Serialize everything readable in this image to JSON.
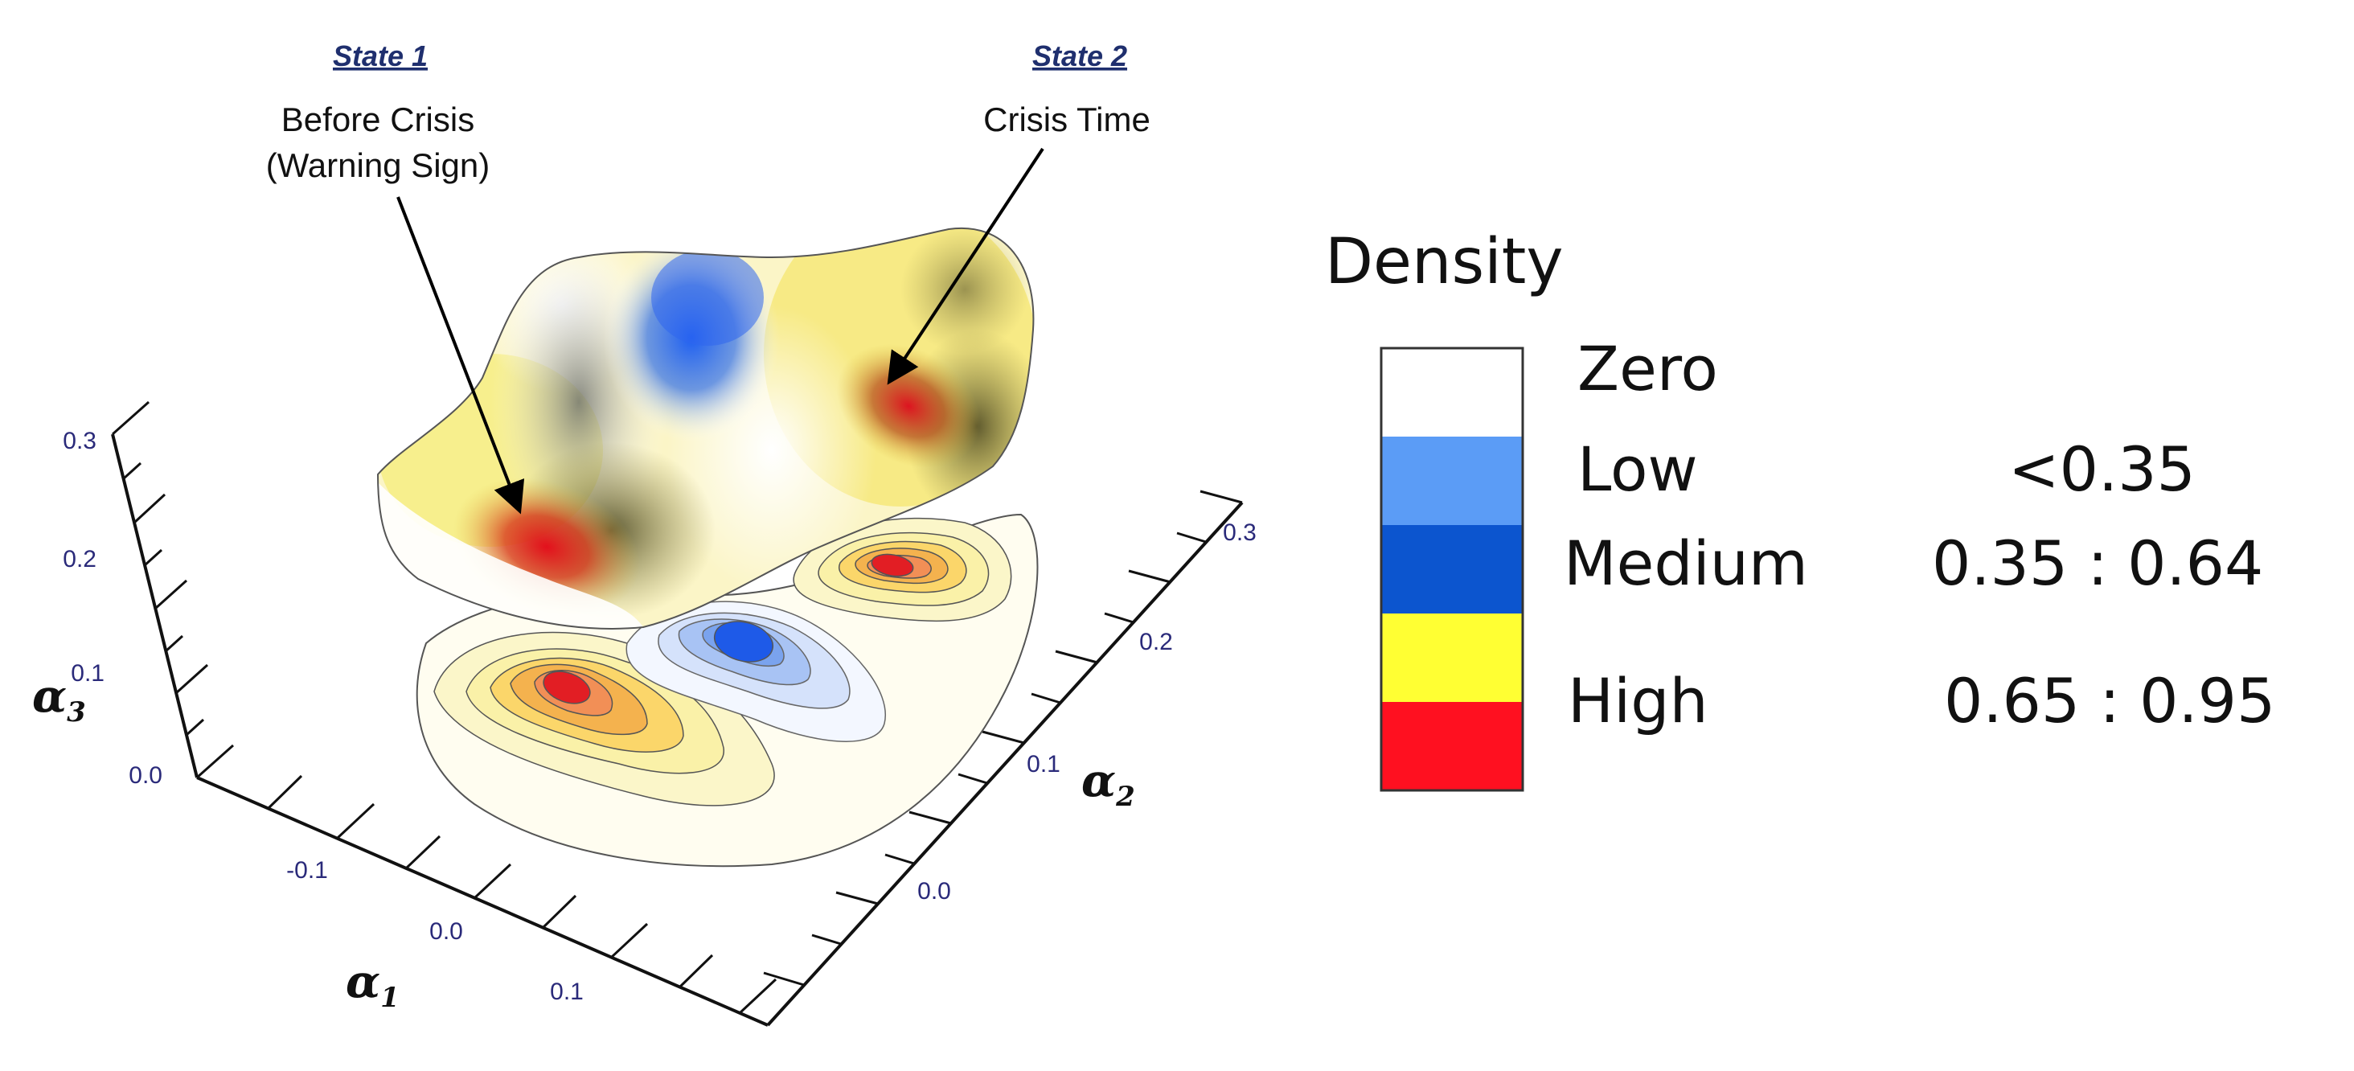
{
  "chart_data": {
    "type": "surface3d-density",
    "title": "",
    "states": [
      {
        "title": "State 1",
        "label_lines": [
          "Before Crisis",
          "(Warning Sign)"
        ]
      },
      {
        "title": "State 2",
        "label_lines": [
          "Crisis Time"
        ]
      }
    ],
    "axes": {
      "x": {
        "label": "α",
        "subscript": "1",
        "ticks": [
          "-0.1",
          "0.0",
          "0.1"
        ]
      },
      "y": {
        "label": "α",
        "subscript": "2",
        "ticks": [
          "0.0",
          "0.1",
          "0.2",
          "0.3"
        ]
      },
      "z": {
        "label": "α",
        "subscript": "3",
        "ticks": [
          "0.0",
          "0.1",
          "0.2",
          "0.3"
        ]
      }
    },
    "legend": {
      "title": "Density",
      "entries": [
        {
          "label": "Zero",
          "range": "",
          "color": "#ffffff"
        },
        {
          "label": "Low",
          "range": "<0.35",
          "color": "#5b9cf6"
        },
        {
          "label": "Medium",
          "range": "0.35 : 0.64",
          "color": "#0c55cf"
        },
        {
          "label": "High",
          "range": "0.65 : 0.95",
          "color": "#ffff33"
        },
        {
          "label": "",
          "range": "",
          "color": "#ff1020"
        }
      ]
    }
  }
}
